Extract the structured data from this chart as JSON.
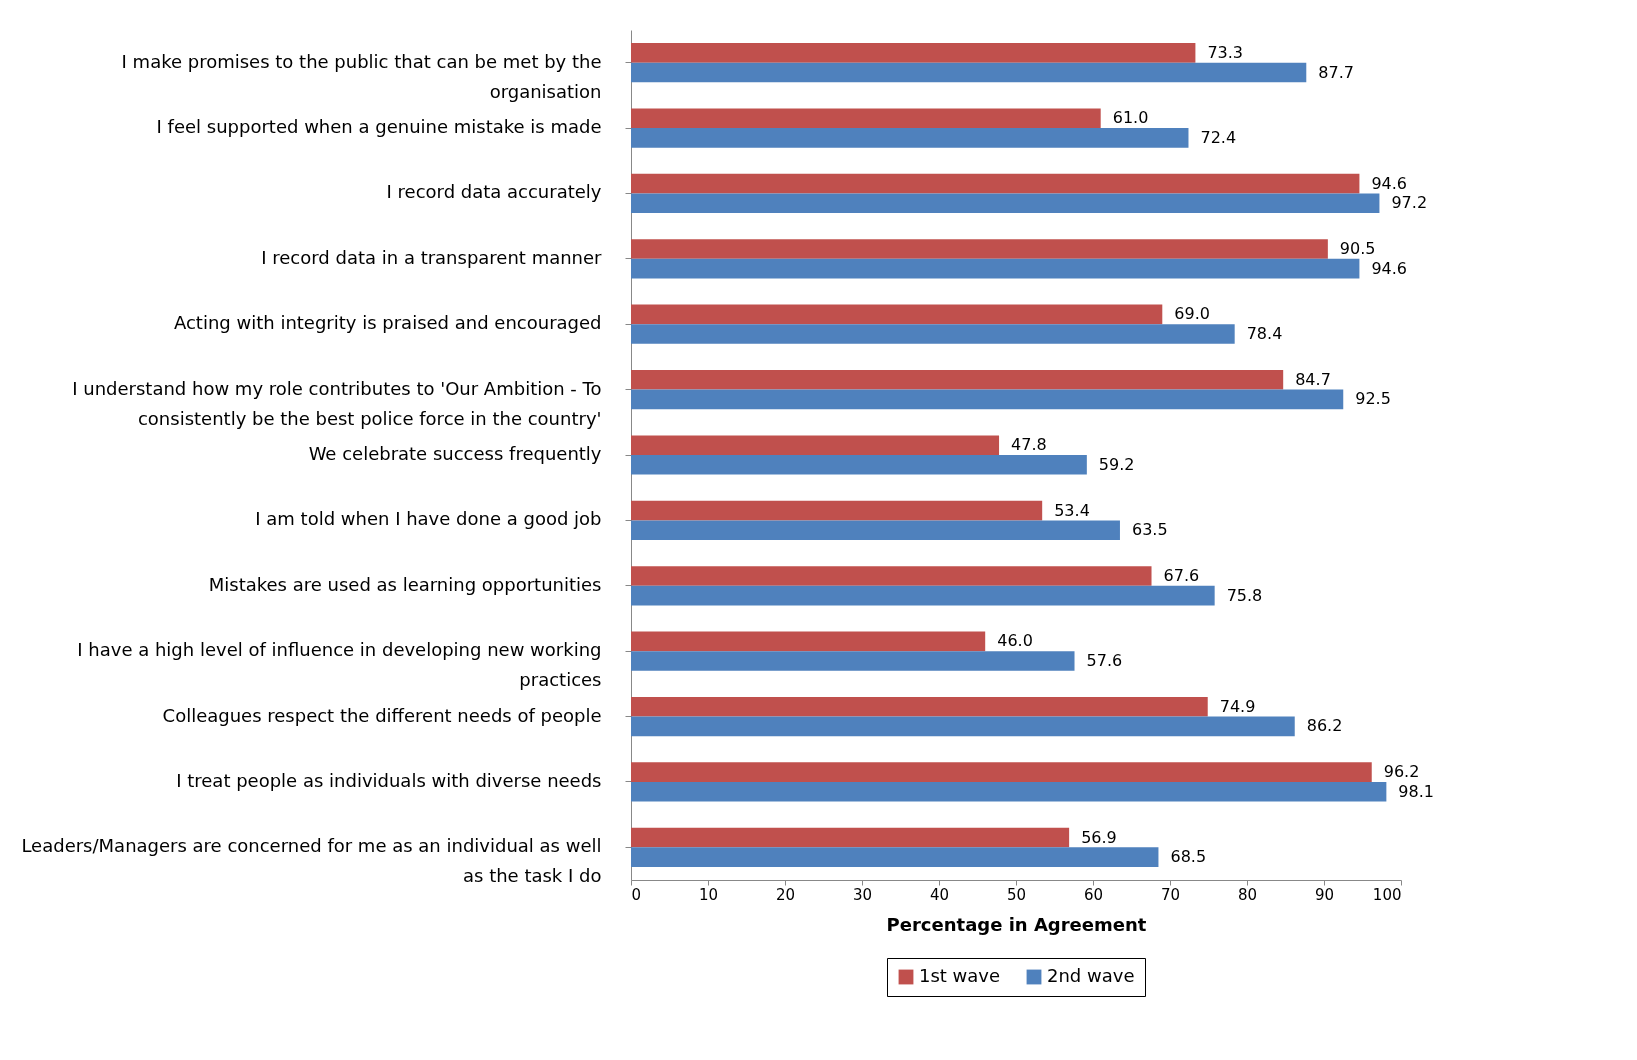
{
  "chart_data": {
    "type": "bar",
    "orientation": "horizontal",
    "xlabel": "Percentage in Agreement",
    "categories": [
      "I make promises to the public that can be met by the organisation",
      "I feel supported when a genuine mistake is made",
      "I record data accurately",
      "I record data in a transparent manner",
      "Acting with integrity is praised and encouraged",
      "I understand how my role contributes to 'Our Ambition - To consistently be the best police force in the country'",
      "We celebrate success frequently",
      "I am told when I have done a good job",
      "Mistakes are used as learning opportunities",
      "I have a high level of influence in developing new working practices",
      "Colleagues respect the different needs of people",
      "I treat people as individuals with diverse needs",
      "Leaders/Managers are concerned for me as an individual as well as the task I do"
    ],
    "series": [
      {
        "name": "1st wave",
        "color": "#c0504d",
        "values": [
          73.3,
          61.0,
          94.6,
          90.5,
          69.0,
          84.7,
          47.8,
          53.4,
          67.6,
          46.0,
          74.9,
          96.2,
          56.9
        ],
        "value_labels": [
          "73.3",
          "61.0",
          "94.6",
          "90.5",
          "69.0",
          "84.7",
          "47.8",
          "53.4",
          "67.6",
          "46.0",
          "74.9",
          "96.2",
          "56.9"
        ]
      },
      {
        "name": "2nd wave",
        "color": "#4f81bd",
        "values": [
          87.7,
          72.4,
          97.2,
          94.6,
          78.4,
          92.5,
          59.2,
          63.5,
          75.8,
          57.6,
          86.2,
          98.1,
          68.5
        ],
        "value_labels": [
          "87.7",
          "72.4",
          "97.2",
          "94.6",
          "78.4",
          "92.5",
          "59.2",
          "63.5",
          "75.8",
          "57.6",
          "86.2",
          "98.1",
          "68.5"
        ]
      }
    ],
    "xlim": [
      0,
      100
    ],
    "xticks": [
      0,
      10,
      20,
      30,
      40,
      50,
      60,
      70,
      80,
      90,
      100
    ],
    "legend": "bottom"
  }
}
